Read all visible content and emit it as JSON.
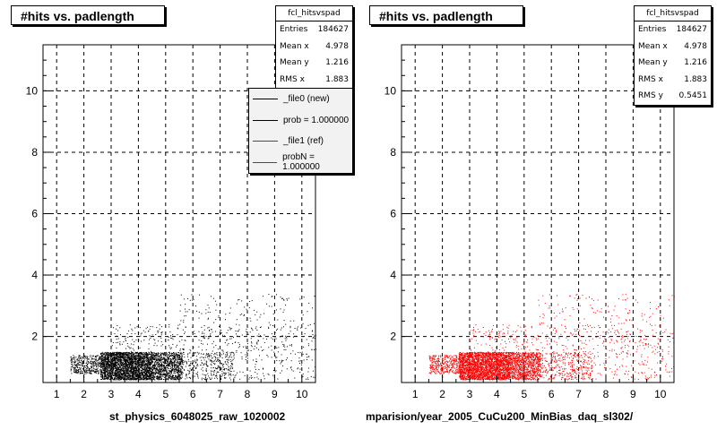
{
  "chart_data": [
    {
      "type": "scatter",
      "title": "#hits vs. padlength",
      "xlabel": "st_physics_6048025_raw_1020002",
      "ylabel": "",
      "xlim": [
        0.5,
        10.5
      ],
      "ylim": [
        0.5,
        11.5
      ],
      "x_ticks": [
        "1",
        "2",
        "3",
        "4",
        "5",
        "6",
        "7",
        "8",
        "9",
        "10"
      ],
      "y_ticks": [
        "2",
        "4",
        "6",
        "8",
        "10"
      ],
      "grid": true,
      "series": [
        {
          "color": "#000000",
          "density_regions": [
            {
              "x_range": [
                2.6,
                4.5
              ],
              "y_range": [
                0.6,
                1.5
              ],
              "density": "high"
            },
            {
              "x_range": [
                4.5,
                5.6
              ],
              "y_range": [
                0.6,
                1.5
              ],
              "density": "medium"
            },
            {
              "x_range": [
                1.5,
                2.6
              ],
              "y_range": [
                0.8,
                1.4
              ],
              "density": "low"
            },
            {
              "x_range": [
                5.6,
                7.5
              ],
              "y_range": [
                0.6,
                1.5
              ],
              "density": "low"
            },
            {
              "x_range": [
                3.0,
                10.5
              ],
              "y_range": [
                1.5,
                2.4
              ],
              "density": "low"
            },
            {
              "x_range": [
                5.5,
                10.5
              ],
              "y_range": [
                2.4,
                3.4
              ],
              "density": "sparse"
            },
            {
              "x_range": [
                7.5,
                10.5
              ],
              "y_range": [
                0.6,
                1.5
              ],
              "density": "sparse"
            }
          ]
        }
      ],
      "stats": {
        "name": "fcl_hitsvspad",
        "rows": [
          {
            "label": "Entries",
            "value": "184627"
          },
          {
            "label": "Mean x",
            "value": "4.978"
          },
          {
            "label": "Mean y",
            "value": "1.216"
          },
          {
            "label": "RMS x",
            "value": "1.883"
          }
        ]
      },
      "legend": {
        "placement": "top-right",
        "entries": [
          {
            "label": "_file0 (new)",
            "color": "#000000"
          },
          {
            "label": "prob = 1.000000",
            "color": "#000000"
          },
          {
            "label": "_file1 (ref)",
            "color": "#ff0000"
          },
          {
            "label": "probN = 1.000000",
            "color": "#ff0000"
          }
        ]
      }
    },
    {
      "type": "scatter",
      "title": "#hits vs. padlength",
      "xlabel": "mparision/year_2005_CuCu200_MinBias_daq_sl302/",
      "ylabel": "",
      "xlim": [
        0.5,
        10.5
      ],
      "ylim": [
        0.5,
        11.5
      ],
      "x_ticks": [
        "1",
        "2",
        "3",
        "4",
        "5",
        "6",
        "7",
        "8",
        "9",
        "10"
      ],
      "y_ticks": [
        "2",
        "4",
        "6",
        "8",
        "10"
      ],
      "grid": true,
      "series": [
        {
          "color": "#ff0000",
          "density_regions": [
            {
              "x_range": [
                2.6,
                4.5
              ],
              "y_range": [
                0.6,
                1.5
              ],
              "density": "high"
            },
            {
              "x_range": [
                4.5,
                5.6
              ],
              "y_range": [
                0.6,
                1.5
              ],
              "density": "medium"
            },
            {
              "x_range": [
                1.5,
                2.6
              ],
              "y_range": [
                0.8,
                1.4
              ],
              "density": "low"
            },
            {
              "x_range": [
                5.6,
                7.5
              ],
              "y_range": [
                0.6,
                1.5
              ],
              "density": "low"
            },
            {
              "x_range": [
                3.0,
                10.5
              ],
              "y_range": [
                1.5,
                2.4
              ],
              "density": "low"
            },
            {
              "x_range": [
                5.5,
                10.5
              ],
              "y_range": [
                2.4,
                3.4
              ],
              "density": "sparse"
            },
            {
              "x_range": [
                7.5,
                10.5
              ],
              "y_range": [
                0.6,
                1.5
              ],
              "density": "sparse"
            }
          ]
        }
      ],
      "stats": {
        "name": "fcl_hitsvspad",
        "rows": [
          {
            "label": "Entries",
            "value": "184627"
          },
          {
            "label": "Mean x",
            "value": "4.978"
          },
          {
            "label": "Mean y",
            "value": "1.216"
          },
          {
            "label": "RMS x",
            "value": "1.883"
          },
          {
            "label": "RMS y",
            "value": "0.5451"
          }
        ]
      }
    }
  ]
}
